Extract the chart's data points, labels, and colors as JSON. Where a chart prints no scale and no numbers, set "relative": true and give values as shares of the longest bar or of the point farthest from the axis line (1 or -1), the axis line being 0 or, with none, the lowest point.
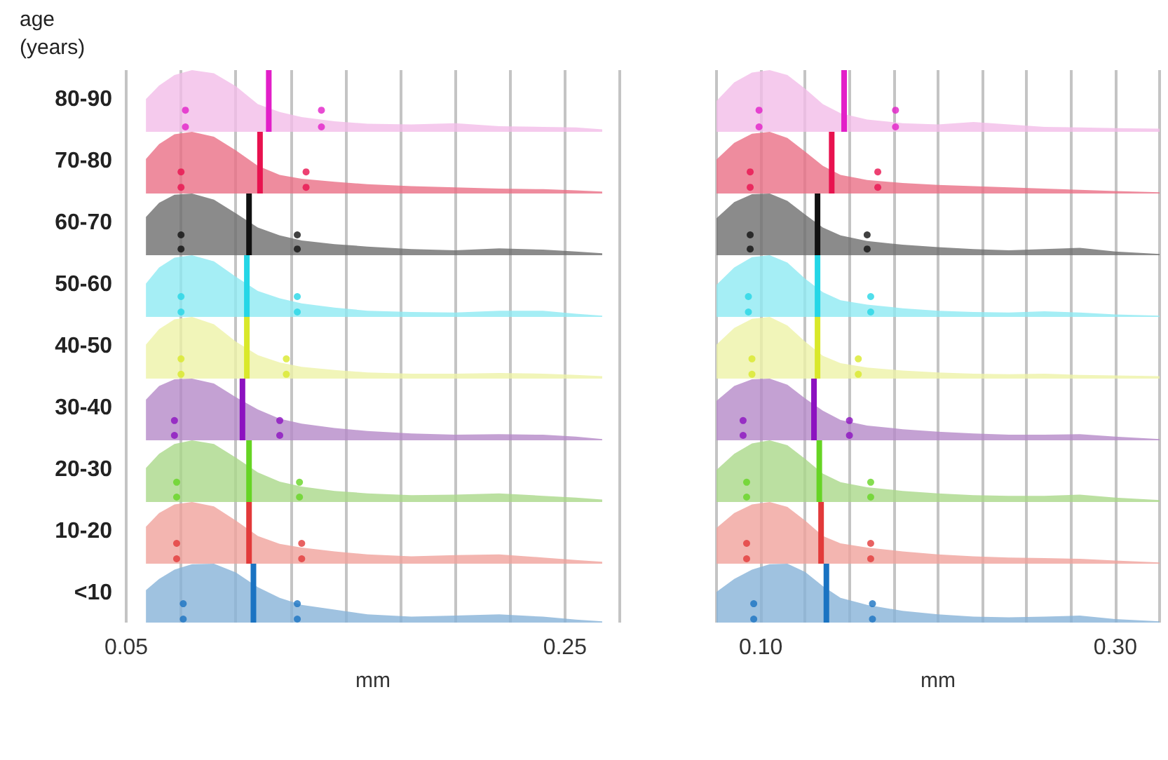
{
  "chart_data": [
    {
      "type": "area",
      "relative": true,
      "ylabel": "80-90",
      "annotations": [
        "age (years)"
      ],
      "x": [
        0.059,
        0.065,
        0.072,
        0.08,
        0.09,
        0.1,
        0.11,
        0.12,
        0.13,
        0.145,
        0.16,
        0.18,
        0.2,
        0.22,
        0.24,
        0.255,
        0.267
      ],
      "xlim": [
        0.05,
        0.275
      ],
      "xticks": [
        0.05,
        {
          "value": 0.075,
          "label": null
        },
        {
          "value": 0.1,
          "label": null
        },
        {
          "value": 0.125,
          "label": null
        },
        {
          "value": 0.15,
          "label": null
        },
        {
          "value": 0.175,
          "label": null
        },
        {
          "value": 0.2,
          "label": null
        },
        {
          "value": 0.225,
          "label": null
        },
        0.25,
        {
          "value": 0.275,
          "label": null
        }
      ],
      "grid": "x",
      "tick_labels": false,
      "ref_lines": [
        {
          "axis": "x",
          "value": 0.115,
          "color": "#e21fc8"
        }
      ],
      "series": [
        {
          "color": "#f2bde9",
          "values": [
            0.53,
            0.75,
            0.92,
            1,
            0.95,
            0.74,
            0.45,
            0.32,
            0.24,
            0.17,
            0.13,
            0.12,
            0.14,
            0.09,
            0.08,
            0.07,
            0.04
          ]
        },
        {
          "type": "scatter",
          "color": "#e21fc8",
          "x": [
            0.077,
            0.077,
            0.139,
            0.139
          ],
          "values": [
            0.35,
            0.08,
            0.35,
            0.08
          ]
        }
      ]
    },
    {
      "type": "area",
      "relative": true,
      "ylabel": "70-80",
      "x": [
        0.059,
        0.065,
        0.072,
        0.08,
        0.09,
        0.1,
        0.11,
        0.12,
        0.13,
        0.145,
        0.16,
        0.18,
        0.2,
        0.22,
        0.24,
        0.255,
        0.267
      ],
      "xlim": [
        0.05,
        0.275
      ],
      "xticks": [
        0.05,
        {
          "value": 0.075,
          "label": null
        },
        {
          "value": 0.1,
          "label": null
        },
        {
          "value": 0.125,
          "label": null
        },
        {
          "value": 0.15,
          "label": null
        },
        {
          "value": 0.175,
          "label": null
        },
        {
          "value": 0.2,
          "label": null
        },
        {
          "value": 0.225,
          "label": null
        },
        0.25,
        {
          "value": 0.275,
          "label": null
        }
      ],
      "grid": "x",
      "tick_labels": false,
      "ref_lines": [
        {
          "axis": "x",
          "value": 0.111,
          "color": "#e8124f"
        }
      ],
      "series": [
        {
          "color": "#ea6f86",
          "values": [
            0.56,
            0.8,
            0.96,
            1,
            0.92,
            0.7,
            0.45,
            0.3,
            0.24,
            0.19,
            0.15,
            0.12,
            0.1,
            0.08,
            0.07,
            0.05,
            0.03
          ]
        },
        {
          "type": "scatter",
          "color": "#e8124f",
          "x": [
            0.075,
            0.075,
            0.132,
            0.132
          ],
          "values": [
            0.35,
            0.1,
            0.35,
            0.1
          ]
        }
      ]
    },
    {
      "type": "area",
      "relative": true,
      "ylabel": "60-70",
      "x": [
        0.059,
        0.065,
        0.072,
        0.08,
        0.09,
        0.1,
        0.11,
        0.12,
        0.13,
        0.145,
        0.16,
        0.18,
        0.2,
        0.22,
        0.24,
        0.255,
        0.267
      ],
      "xlim": [
        0.05,
        0.275
      ],
      "xticks": [
        0.05,
        {
          "value": 0.075,
          "label": null
        },
        {
          "value": 0.1,
          "label": null
        },
        {
          "value": 0.125,
          "label": null
        },
        {
          "value": 0.15,
          "label": null
        },
        {
          "value": 0.175,
          "label": null
        },
        {
          "value": 0.2,
          "label": null
        },
        {
          "value": 0.225,
          "label": null
        },
        0.25,
        {
          "value": 0.275,
          "label": null
        }
      ],
      "grid": "x",
      "tick_labels": false,
      "ref_lines": [
        {
          "axis": "x",
          "value": 0.106,
          "color": "#111111"
        }
      ],
      "series": [
        {
          "color": "#6e6e6e",
          "values": [
            0.62,
            0.85,
            0.98,
            1,
            0.9,
            0.68,
            0.45,
            0.32,
            0.24,
            0.18,
            0.14,
            0.1,
            0.08,
            0.11,
            0.09,
            0.06,
            0.03
          ]
        },
        {
          "type": "scatter",
          "color": "#111111",
          "x": [
            0.075,
            0.075,
            0.128,
            0.128
          ],
          "values": [
            0.33,
            0.1,
            0.33,
            0.1
          ]
        }
      ]
    },
    {
      "type": "area",
      "relative": true,
      "ylabel": "50-60",
      "x": [
        0.059,
        0.065,
        0.072,
        0.08,
        0.09,
        0.1,
        0.11,
        0.12,
        0.13,
        0.145,
        0.16,
        0.18,
        0.2,
        0.22,
        0.24,
        0.255,
        0.267
      ],
      "xlim": [
        0.05,
        0.275
      ],
      "xticks": [
        0.05,
        {
          "value": 0.075,
          "label": null
        },
        {
          "value": 0.1,
          "label": null
        },
        {
          "value": 0.125,
          "label": null
        },
        {
          "value": 0.15,
          "label": null
        },
        {
          "value": 0.175,
          "label": null
        },
        {
          "value": 0.2,
          "label": null
        },
        {
          "value": 0.225,
          "label": null
        },
        0.25,
        {
          "value": 0.275,
          "label": null
        }
      ],
      "grid": "x",
      "tick_labels": false,
      "ref_lines": [
        {
          "axis": "x",
          "value": 0.105,
          "color": "#25d6e6"
        }
      ],
      "series": [
        {
          "color": "#8eeaf2",
          "values": [
            0.54,
            0.8,
            0.96,
            1,
            0.9,
            0.65,
            0.42,
            0.3,
            0.22,
            0.15,
            0.1,
            0.08,
            0.07,
            0.1,
            0.1,
            0.05,
            0.02
          ]
        },
        {
          "type": "scatter",
          "color": "#25d6e6",
          "x": [
            0.075,
            0.075,
            0.128,
            0.128
          ],
          "values": [
            0.33,
            0.08,
            0.33,
            0.08
          ]
        }
      ]
    },
    {
      "type": "area",
      "relative": true,
      "ylabel": "40-50",
      "x": [
        0.059,
        0.065,
        0.072,
        0.08,
        0.09,
        0.1,
        0.11,
        0.12,
        0.13,
        0.145,
        0.16,
        0.18,
        0.2,
        0.22,
        0.24,
        0.255,
        0.267
      ],
      "xlim": [
        0.05,
        0.275
      ],
      "xticks": [
        0.05,
        {
          "value": 0.075,
          "label": null
        },
        {
          "value": 0.1,
          "label": null
        },
        {
          "value": 0.125,
          "label": null
        },
        {
          "value": 0.15,
          "label": null
        },
        {
          "value": 0.175,
          "label": null
        },
        {
          "value": 0.2,
          "label": null
        },
        {
          "value": 0.225,
          "label": null
        },
        0.25,
        {
          "value": 0.275,
          "label": null
        }
      ],
      "grid": "x",
      "tick_labels": false,
      "ref_lines": [
        {
          "axis": "x",
          "value": 0.105,
          "color": "#d9e82a"
        }
      ],
      "series": [
        {
          "color": "#eef2a8",
          "values": [
            0.55,
            0.8,
            0.96,
            1,
            0.88,
            0.6,
            0.38,
            0.26,
            0.19,
            0.14,
            0.1,
            0.08,
            0.08,
            0.09,
            0.08,
            0.06,
            0.04
          ]
        },
        {
          "type": "scatter",
          "color": "#d9e82a",
          "x": [
            0.075,
            0.075,
            0.123,
            0.123
          ],
          "values": [
            0.32,
            0.07,
            0.32,
            0.07
          ]
        }
      ]
    },
    {
      "type": "area",
      "relative": true,
      "ylabel": "30-40",
      "x": [
        0.059,
        0.065,
        0.072,
        0.08,
        0.09,
        0.1,
        0.11,
        0.12,
        0.13,
        0.145,
        0.16,
        0.18,
        0.2,
        0.22,
        0.24,
        0.255,
        0.267
      ],
      "xlim": [
        0.05,
        0.275
      ],
      "xticks": [
        0.05,
        {
          "value": 0.075,
          "label": null
        },
        {
          "value": 0.1,
          "label": null
        },
        {
          "value": 0.125,
          "label": null
        },
        {
          "value": 0.15,
          "label": null
        },
        {
          "value": 0.175,
          "label": null
        },
        {
          "value": 0.2,
          "label": null
        },
        {
          "value": 0.225,
          "label": null
        },
        0.25,
        {
          "value": 0.275,
          "label": null
        }
      ],
      "grid": "x",
      "tick_labels": false,
      "ref_lines": [
        {
          "axis": "x",
          "value": 0.103,
          "color": "#8c12c0"
        }
      ],
      "series": [
        {
          "color": "#b58ac8",
          "values": [
            0.66,
            0.88,
            0.99,
            1,
            0.92,
            0.7,
            0.5,
            0.35,
            0.27,
            0.2,
            0.15,
            0.11,
            0.09,
            0.1,
            0.09,
            0.06,
            0.02
          ]
        },
        {
          "type": "scatter",
          "color": "#8c12c0",
          "x": [
            0.072,
            0.072,
            0.12,
            0.12
          ],
          "values": [
            0.32,
            0.08,
            0.32,
            0.08
          ]
        }
      ]
    },
    {
      "type": "area",
      "relative": true,
      "ylabel": "20-30",
      "x": [
        0.059,
        0.065,
        0.072,
        0.08,
        0.09,
        0.1,
        0.11,
        0.12,
        0.13,
        0.145,
        0.16,
        0.18,
        0.2,
        0.22,
        0.24,
        0.255,
        0.267
      ],
      "xlim": [
        0.05,
        0.275
      ],
      "xticks": [
        0.05,
        {
          "value": 0.075,
          "label": null
        },
        {
          "value": 0.1,
          "label": null
        },
        {
          "value": 0.125,
          "label": null
        },
        {
          "value": 0.15,
          "label": null
        },
        {
          "value": 0.175,
          "label": null
        },
        {
          "value": 0.2,
          "label": null
        },
        {
          "value": 0.225,
          "label": null
        },
        0.25,
        {
          "value": 0.275,
          "label": null
        }
      ],
      "grid": "x",
      "tick_labels": false,
      "ref_lines": [
        {
          "axis": "x",
          "value": 0.106,
          "color": "#66d424"
        }
      ],
      "series": [
        {
          "color": "#aad88a",
          "values": [
            0.55,
            0.78,
            0.94,
            1,
            0.94,
            0.72,
            0.48,
            0.33,
            0.25,
            0.18,
            0.14,
            0.11,
            0.12,
            0.14,
            0.1,
            0.07,
            0.04
          ]
        },
        {
          "type": "scatter",
          "color": "#66d424",
          "x": [
            0.073,
            0.073,
            0.129,
            0.129
          ],
          "values": [
            0.32,
            0.08,
            0.32,
            0.08
          ]
        }
      ]
    },
    {
      "type": "area",
      "relative": true,
      "ylabel": "10-20",
      "x": [
        0.059,
        0.065,
        0.072,
        0.08,
        0.09,
        0.1,
        0.11,
        0.12,
        0.13,
        0.145,
        0.16,
        0.18,
        0.2,
        0.22,
        0.24,
        0.255,
        0.267
      ],
      "xlim": [
        0.05,
        0.275
      ],
      "xticks": [
        0.05,
        {
          "value": 0.075,
          "label": null
        },
        {
          "value": 0.1,
          "label": null
        },
        {
          "value": 0.125,
          "label": null
        },
        {
          "value": 0.15,
          "label": null
        },
        {
          "value": 0.175,
          "label": null
        },
        {
          "value": 0.2,
          "label": null
        },
        {
          "value": 0.225,
          "label": null
        },
        0.25,
        {
          "value": 0.275,
          "label": null
        }
      ],
      "grid": "x",
      "tick_labels": false,
      "ref_lines": [
        {
          "axis": "x",
          "value": 0.106,
          "color": "#e23a3a"
        }
      ],
      "series": [
        {
          "color": "#f0a39c",
          "values": [
            0.6,
            0.82,
            0.96,
            1,
            0.93,
            0.7,
            0.45,
            0.32,
            0.26,
            0.2,
            0.15,
            0.12,
            0.14,
            0.15,
            0.1,
            0.06,
            0.03
          ]
        },
        {
          "type": "scatter",
          "color": "#e23a3a",
          "x": [
            0.073,
            0.073,
            0.13,
            0.13
          ],
          "values": [
            0.33,
            0.08,
            0.33,
            0.08
          ]
        }
      ]
    },
    {
      "type": "area",
      "relative": true,
      "ylabel": "<10",
      "xlabel": "mm",
      "x": [
        0.059,
        0.065,
        0.072,
        0.08,
        0.09,
        0.1,
        0.11,
        0.12,
        0.13,
        0.145,
        0.16,
        0.18,
        0.2,
        0.22,
        0.24,
        0.255,
        0.267
      ],
      "xlim": [
        0.05,
        0.275
      ],
      "xticks": [
        0.05,
        {
          "value": 0.075,
          "label": null
        },
        {
          "value": 0.1,
          "label": null
        },
        {
          "value": 0.125,
          "label": null
        },
        {
          "value": 0.15,
          "label": null
        },
        {
          "value": 0.175,
          "label": null
        },
        {
          "value": 0.2,
          "label": null
        },
        {
          "value": 0.225,
          "label": null
        },
        0.25,
        {
          "value": 0.275,
          "label": null
        }
      ],
      "grid": "x",
      "ref_lines": [
        {
          "axis": "x",
          "value": 0.108,
          "color": "#1a73c2"
        }
      ],
      "series": [
        {
          "color": "#87b3d8",
          "values": [
            0.55,
            0.74,
            0.9,
            0.99,
            1,
            0.85,
            0.6,
            0.42,
            0.3,
            0.22,
            0.14,
            0.1,
            0.12,
            0.14,
            0.1,
            0.05,
            0.02
          ]
        },
        {
          "type": "scatter",
          "color": "#1a73c2",
          "x": [
            0.076,
            0.076,
            0.128,
            0.128
          ],
          "values": [
            0.32,
            0.06,
            0.32,
            0.06
          ]
        }
      ]
    },
    {
      "type": "area",
      "relative": true,
      "x": [
        0.075,
        0.085,
        0.095,
        0.105,
        0.115,
        0.125,
        0.135,
        0.145,
        0.16,
        0.18,
        0.2,
        0.22,
        0.24,
        0.26,
        0.28,
        0.3,
        0.325
      ],
      "xlim": [
        0.075,
        0.325
      ],
      "xticks": [
        {
          "value": 0.075,
          "label": null
        },
        0.1,
        {
          "value": 0.125,
          "label": null
        },
        {
          "value": 0.15,
          "label": null
        },
        {
          "value": 0.175,
          "label": null
        },
        {
          "value": 0.2,
          "label": null
        },
        {
          "value": 0.225,
          "label": null
        },
        {
          "value": 0.25,
          "label": null
        },
        {
          "value": 0.275,
          "label": null
        },
        0.3,
        {
          "value": 0.325,
          "label": null
        }
      ],
      "grid": "x",
      "tick_labels": false,
      "ref_lines": [
        {
          "axis": "x",
          "value": 0.147,
          "color": "#e21fc8"
        }
      ],
      "series": [
        {
          "color": "#f2bde9",
          "values": [
            0.5,
            0.8,
            0.96,
            1,
            0.92,
            0.7,
            0.45,
            0.3,
            0.2,
            0.14,
            0.12,
            0.16,
            0.12,
            0.08,
            0.07,
            0.06,
            0.05
          ]
        },
        {
          "type": "scatter",
          "color": "#e21fc8",
          "x": [
            0.099,
            0.099,
            0.176,
            0.176
          ],
          "values": [
            0.35,
            0.08,
            0.35,
            0.08
          ]
        }
      ]
    },
    {
      "type": "area",
      "relative": true,
      "x": [
        0.075,
        0.085,
        0.095,
        0.105,
        0.115,
        0.125,
        0.135,
        0.145,
        0.16,
        0.18,
        0.2,
        0.22,
        0.24,
        0.26,
        0.28,
        0.3,
        0.325
      ],
      "xlim": [
        0.075,
        0.325
      ],
      "xticks": [
        {
          "value": 0.075,
          "label": null
        },
        0.1,
        {
          "value": 0.125,
          "label": null
        },
        {
          "value": 0.15,
          "label": null
        },
        {
          "value": 0.175,
          "label": null
        },
        {
          "value": 0.2,
          "label": null
        },
        {
          "value": 0.225,
          "label": null
        },
        {
          "value": 0.25,
          "label": null
        },
        {
          "value": 0.275,
          "label": null
        },
        0.3,
        {
          "value": 0.325,
          "label": null
        }
      ],
      "grid": "x",
      "tick_labels": false,
      "ref_lines": [
        {
          "axis": "x",
          "value": 0.14,
          "color": "#e8124f"
        }
      ],
      "series": [
        {
          "color": "#ea6f86",
          "values": [
            0.55,
            0.82,
            0.97,
            1,
            0.9,
            0.68,
            0.45,
            0.3,
            0.22,
            0.17,
            0.14,
            0.12,
            0.1,
            0.08,
            0.06,
            0.04,
            0.02
          ]
        },
        {
          "type": "scatter",
          "color": "#e8124f",
          "x": [
            0.094,
            0.094,
            0.166,
            0.166
          ],
          "values": [
            0.35,
            0.1,
            0.35,
            0.1
          ]
        }
      ]
    },
    {
      "type": "area",
      "relative": true,
      "x": [
        0.075,
        0.085,
        0.095,
        0.105,
        0.115,
        0.125,
        0.135,
        0.145,
        0.16,
        0.18,
        0.2,
        0.22,
        0.24,
        0.26,
        0.28,
        0.3,
        0.325
      ],
      "xlim": [
        0.075,
        0.325
      ],
      "xticks": [
        {
          "value": 0.075,
          "label": null
        },
        0.1,
        {
          "value": 0.125,
          "label": null
        },
        {
          "value": 0.15,
          "label": null
        },
        {
          "value": 0.175,
          "label": null
        },
        {
          "value": 0.2,
          "label": null
        },
        {
          "value": 0.225,
          "label": null
        },
        {
          "value": 0.25,
          "label": null
        },
        {
          "value": 0.275,
          "label": null
        },
        0.3,
        {
          "value": 0.325,
          "label": null
        }
      ],
      "grid": "x",
      "tick_labels": false,
      "ref_lines": [
        {
          "axis": "x",
          "value": 0.132,
          "color": "#111111"
        }
      ],
      "series": [
        {
          "color": "#6e6e6e",
          "values": [
            0.6,
            0.86,
            0.99,
            1,
            0.88,
            0.66,
            0.45,
            0.32,
            0.23,
            0.17,
            0.13,
            0.1,
            0.08,
            0.1,
            0.12,
            0.06,
            0.02
          ]
        },
        {
          "type": "scatter",
          "color": "#111111",
          "x": [
            0.094,
            0.094,
            0.16,
            0.16
          ],
          "values": [
            0.33,
            0.1,
            0.33,
            0.1
          ]
        }
      ]
    },
    {
      "type": "area",
      "relative": true,
      "x": [
        0.075,
        0.085,
        0.095,
        0.105,
        0.115,
        0.125,
        0.135,
        0.145,
        0.16,
        0.18,
        0.2,
        0.22,
        0.24,
        0.26,
        0.28,
        0.3,
        0.325
      ],
      "xlim": [
        0.075,
        0.325
      ],
      "xticks": [
        {
          "value": 0.075,
          "label": null
        },
        0.1,
        {
          "value": 0.125,
          "label": null
        },
        {
          "value": 0.15,
          "label": null
        },
        {
          "value": 0.175,
          "label": null
        },
        {
          "value": 0.2,
          "label": null
        },
        {
          "value": 0.225,
          "label": null
        },
        {
          "value": 0.25,
          "label": null
        },
        {
          "value": 0.275,
          "label": null
        },
        0.3,
        {
          "value": 0.325,
          "label": null
        }
      ],
      "grid": "x",
      "tick_labels": false,
      "ref_lines": [
        {
          "axis": "x",
          "value": 0.132,
          "color": "#25d6e6"
        }
      ],
      "series": [
        {
          "color": "#8eeaf2",
          "values": [
            0.52,
            0.8,
            0.97,
            1,
            0.88,
            0.62,
            0.4,
            0.27,
            0.2,
            0.14,
            0.1,
            0.08,
            0.07,
            0.09,
            0.07,
            0.04,
            0.02
          ]
        },
        {
          "type": "scatter",
          "color": "#25d6e6",
          "x": [
            0.093,
            0.093,
            0.162,
            0.162
          ],
          "values": [
            0.33,
            0.08,
            0.33,
            0.08
          ]
        }
      ]
    },
    {
      "type": "area",
      "relative": true,
      "x": [
        0.075,
        0.085,
        0.095,
        0.105,
        0.115,
        0.125,
        0.135,
        0.145,
        0.16,
        0.18,
        0.2,
        0.22,
        0.24,
        0.26,
        0.28,
        0.3,
        0.325
      ],
      "xlim": [
        0.075,
        0.325
      ],
      "xticks": [
        {
          "value": 0.075,
          "label": null
        },
        0.1,
        {
          "value": 0.125,
          "label": null
        },
        {
          "value": 0.15,
          "label": null
        },
        {
          "value": 0.175,
          "label": null
        },
        {
          "value": 0.2,
          "label": null
        },
        {
          "value": 0.225,
          "label": null
        },
        {
          "value": 0.25,
          "label": null
        },
        {
          "value": 0.275,
          "label": null
        },
        0.3,
        {
          "value": 0.325,
          "label": null
        }
      ],
      "grid": "x",
      "tick_labels": false,
      "ref_lines": [
        {
          "axis": "x",
          "value": 0.132,
          "color": "#d9e82a"
        }
      ],
      "series": [
        {
          "color": "#eef2a8",
          "values": [
            0.55,
            0.82,
            0.97,
            1,
            0.86,
            0.6,
            0.37,
            0.25,
            0.18,
            0.13,
            0.1,
            0.08,
            0.07,
            0.08,
            0.06,
            0.05,
            0.04
          ]
        },
        {
          "type": "scatter",
          "color": "#d9e82a",
          "x": [
            0.095,
            0.095,
            0.155,
            0.155
          ],
          "values": [
            0.32,
            0.07,
            0.32,
            0.07
          ]
        }
      ]
    },
    {
      "type": "area",
      "relative": true,
      "x": [
        0.075,
        0.085,
        0.095,
        0.105,
        0.115,
        0.125,
        0.135,
        0.145,
        0.16,
        0.18,
        0.2,
        0.22,
        0.24,
        0.26,
        0.28,
        0.3,
        0.325
      ],
      "xlim": [
        0.075,
        0.325
      ],
      "xticks": [
        {
          "value": 0.075,
          "label": null
        },
        0.1,
        {
          "value": 0.125,
          "label": null
        },
        {
          "value": 0.15,
          "label": null
        },
        {
          "value": 0.175,
          "label": null
        },
        {
          "value": 0.2,
          "label": null
        },
        {
          "value": 0.225,
          "label": null
        },
        {
          "value": 0.25,
          "label": null
        },
        {
          "value": 0.275,
          "label": null
        },
        0.3,
        {
          "value": 0.325,
          "label": null
        }
      ],
      "grid": "x",
      "tick_labels": false,
      "ref_lines": [
        {
          "axis": "x",
          "value": 0.13,
          "color": "#8c12c0"
        }
      ],
      "series": [
        {
          "color": "#b58ac8",
          "values": [
            0.64,
            0.88,
            0.99,
            1,
            0.9,
            0.68,
            0.48,
            0.33,
            0.24,
            0.18,
            0.14,
            0.11,
            0.09,
            0.09,
            0.1,
            0.06,
            0.02
          ]
        },
        {
          "type": "scatter",
          "color": "#8c12c0",
          "x": [
            0.09,
            0.09,
            0.15,
            0.15
          ],
          "values": [
            0.32,
            0.08,
            0.32,
            0.08
          ]
        }
      ]
    },
    {
      "type": "area",
      "relative": true,
      "x": [
        0.075,
        0.085,
        0.095,
        0.105,
        0.115,
        0.125,
        0.135,
        0.145,
        0.16,
        0.18,
        0.2,
        0.22,
        0.24,
        0.26,
        0.28,
        0.3,
        0.325
      ],
      "xlim": [
        0.075,
        0.325
      ],
      "xticks": [
        {
          "value": 0.075,
          "label": null
        },
        0.1,
        {
          "value": 0.125,
          "label": null
        },
        {
          "value": 0.15,
          "label": null
        },
        {
          "value": 0.175,
          "label": null
        },
        {
          "value": 0.2,
          "label": null
        },
        {
          "value": 0.225,
          "label": null
        },
        {
          "value": 0.25,
          "label": null
        },
        {
          "value": 0.275,
          "label": null
        },
        0.3,
        {
          "value": 0.325,
          "label": null
        }
      ],
      "grid": "x",
      "tick_labels": false,
      "ref_lines": [
        {
          "axis": "x",
          "value": 0.133,
          "color": "#66d424"
        }
      ],
      "series": [
        {
          "color": "#aad88a",
          "values": [
            0.52,
            0.78,
            0.95,
            1,
            0.92,
            0.7,
            0.46,
            0.32,
            0.24,
            0.18,
            0.14,
            0.11,
            0.1,
            0.1,
            0.12,
            0.07,
            0.03
          ]
        },
        {
          "type": "scatter",
          "color": "#66d424",
          "x": [
            0.092,
            0.092,
            0.162,
            0.162
          ],
          "values": [
            0.32,
            0.08,
            0.32,
            0.08
          ]
        }
      ]
    },
    {
      "type": "area",
      "relative": true,
      "x": [
        0.075,
        0.085,
        0.095,
        0.105,
        0.115,
        0.125,
        0.135,
        0.145,
        0.16,
        0.18,
        0.2,
        0.22,
        0.24,
        0.26,
        0.28,
        0.3,
        0.325
      ],
      "xlim": [
        0.075,
        0.325
      ],
      "xticks": [
        {
          "value": 0.075,
          "label": null
        },
        0.1,
        {
          "value": 0.125,
          "label": null
        },
        {
          "value": 0.15,
          "label": null
        },
        {
          "value": 0.175,
          "label": null
        },
        {
          "value": 0.2,
          "label": null
        },
        {
          "value": 0.225,
          "label": null
        },
        {
          "value": 0.25,
          "label": null
        },
        {
          "value": 0.275,
          "label": null
        },
        0.3,
        {
          "value": 0.325,
          "label": null
        }
      ],
      "grid": "x",
      "tick_labels": false,
      "ref_lines": [
        {
          "axis": "x",
          "value": 0.134,
          "color": "#e23a3a"
        }
      ],
      "series": [
        {
          "color": "#f0a39c",
          "values": [
            0.58,
            0.82,
            0.96,
            1,
            0.92,
            0.7,
            0.45,
            0.33,
            0.26,
            0.2,
            0.15,
            0.12,
            0.1,
            0.09,
            0.08,
            0.05,
            0.02
          ]
        },
        {
          "type": "scatter",
          "color": "#e23a3a",
          "x": [
            0.092,
            0.092,
            0.162,
            0.162
          ],
          "values": [
            0.33,
            0.08,
            0.33,
            0.08
          ]
        }
      ]
    },
    {
      "type": "area",
      "relative": true,
      "xlabel": "mm",
      "x": [
        0.075,
        0.085,
        0.095,
        0.105,
        0.115,
        0.125,
        0.135,
        0.145,
        0.16,
        0.18,
        0.2,
        0.22,
        0.24,
        0.26,
        0.28,
        0.3,
        0.325
      ],
      "xlim": [
        0.075,
        0.325
      ],
      "xticks": [
        {
          "value": 0.075,
          "label": null
        },
        {
          "value": 0.1,
          "label": "0.10"
        },
        {
          "value": 0.125,
          "label": null
        },
        {
          "value": 0.15,
          "label": null
        },
        {
          "value": 0.175,
          "label": null
        },
        {
          "value": 0.2,
          "label": null
        },
        {
          "value": 0.225,
          "label": null
        },
        {
          "value": 0.25,
          "label": null
        },
        {
          "value": 0.275,
          "label": null
        },
        {
          "value": 0.3,
          "label": "0.30"
        },
        {
          "value": 0.325,
          "label": null
        }
      ],
      "grid": "x",
      "ref_lines": [
        {
          "axis": "x",
          "value": 0.137,
          "color": "#1a73c2"
        }
      ],
      "series": [
        {
          "color": "#87b3d8",
          "values": [
            0.52,
            0.74,
            0.9,
            0.99,
            1,
            0.86,
            0.62,
            0.42,
            0.3,
            0.2,
            0.14,
            0.1,
            0.09,
            0.1,
            0.12,
            0.06,
            0.02
          ]
        },
        {
          "type": "scatter",
          "color": "#1a73c2",
          "x": [
            0.096,
            0.096,
            0.163,
            0.163
          ],
          "values": [
            0.32,
            0.06,
            0.32,
            0.06
          ]
        }
      ]
    }
  ]
}
